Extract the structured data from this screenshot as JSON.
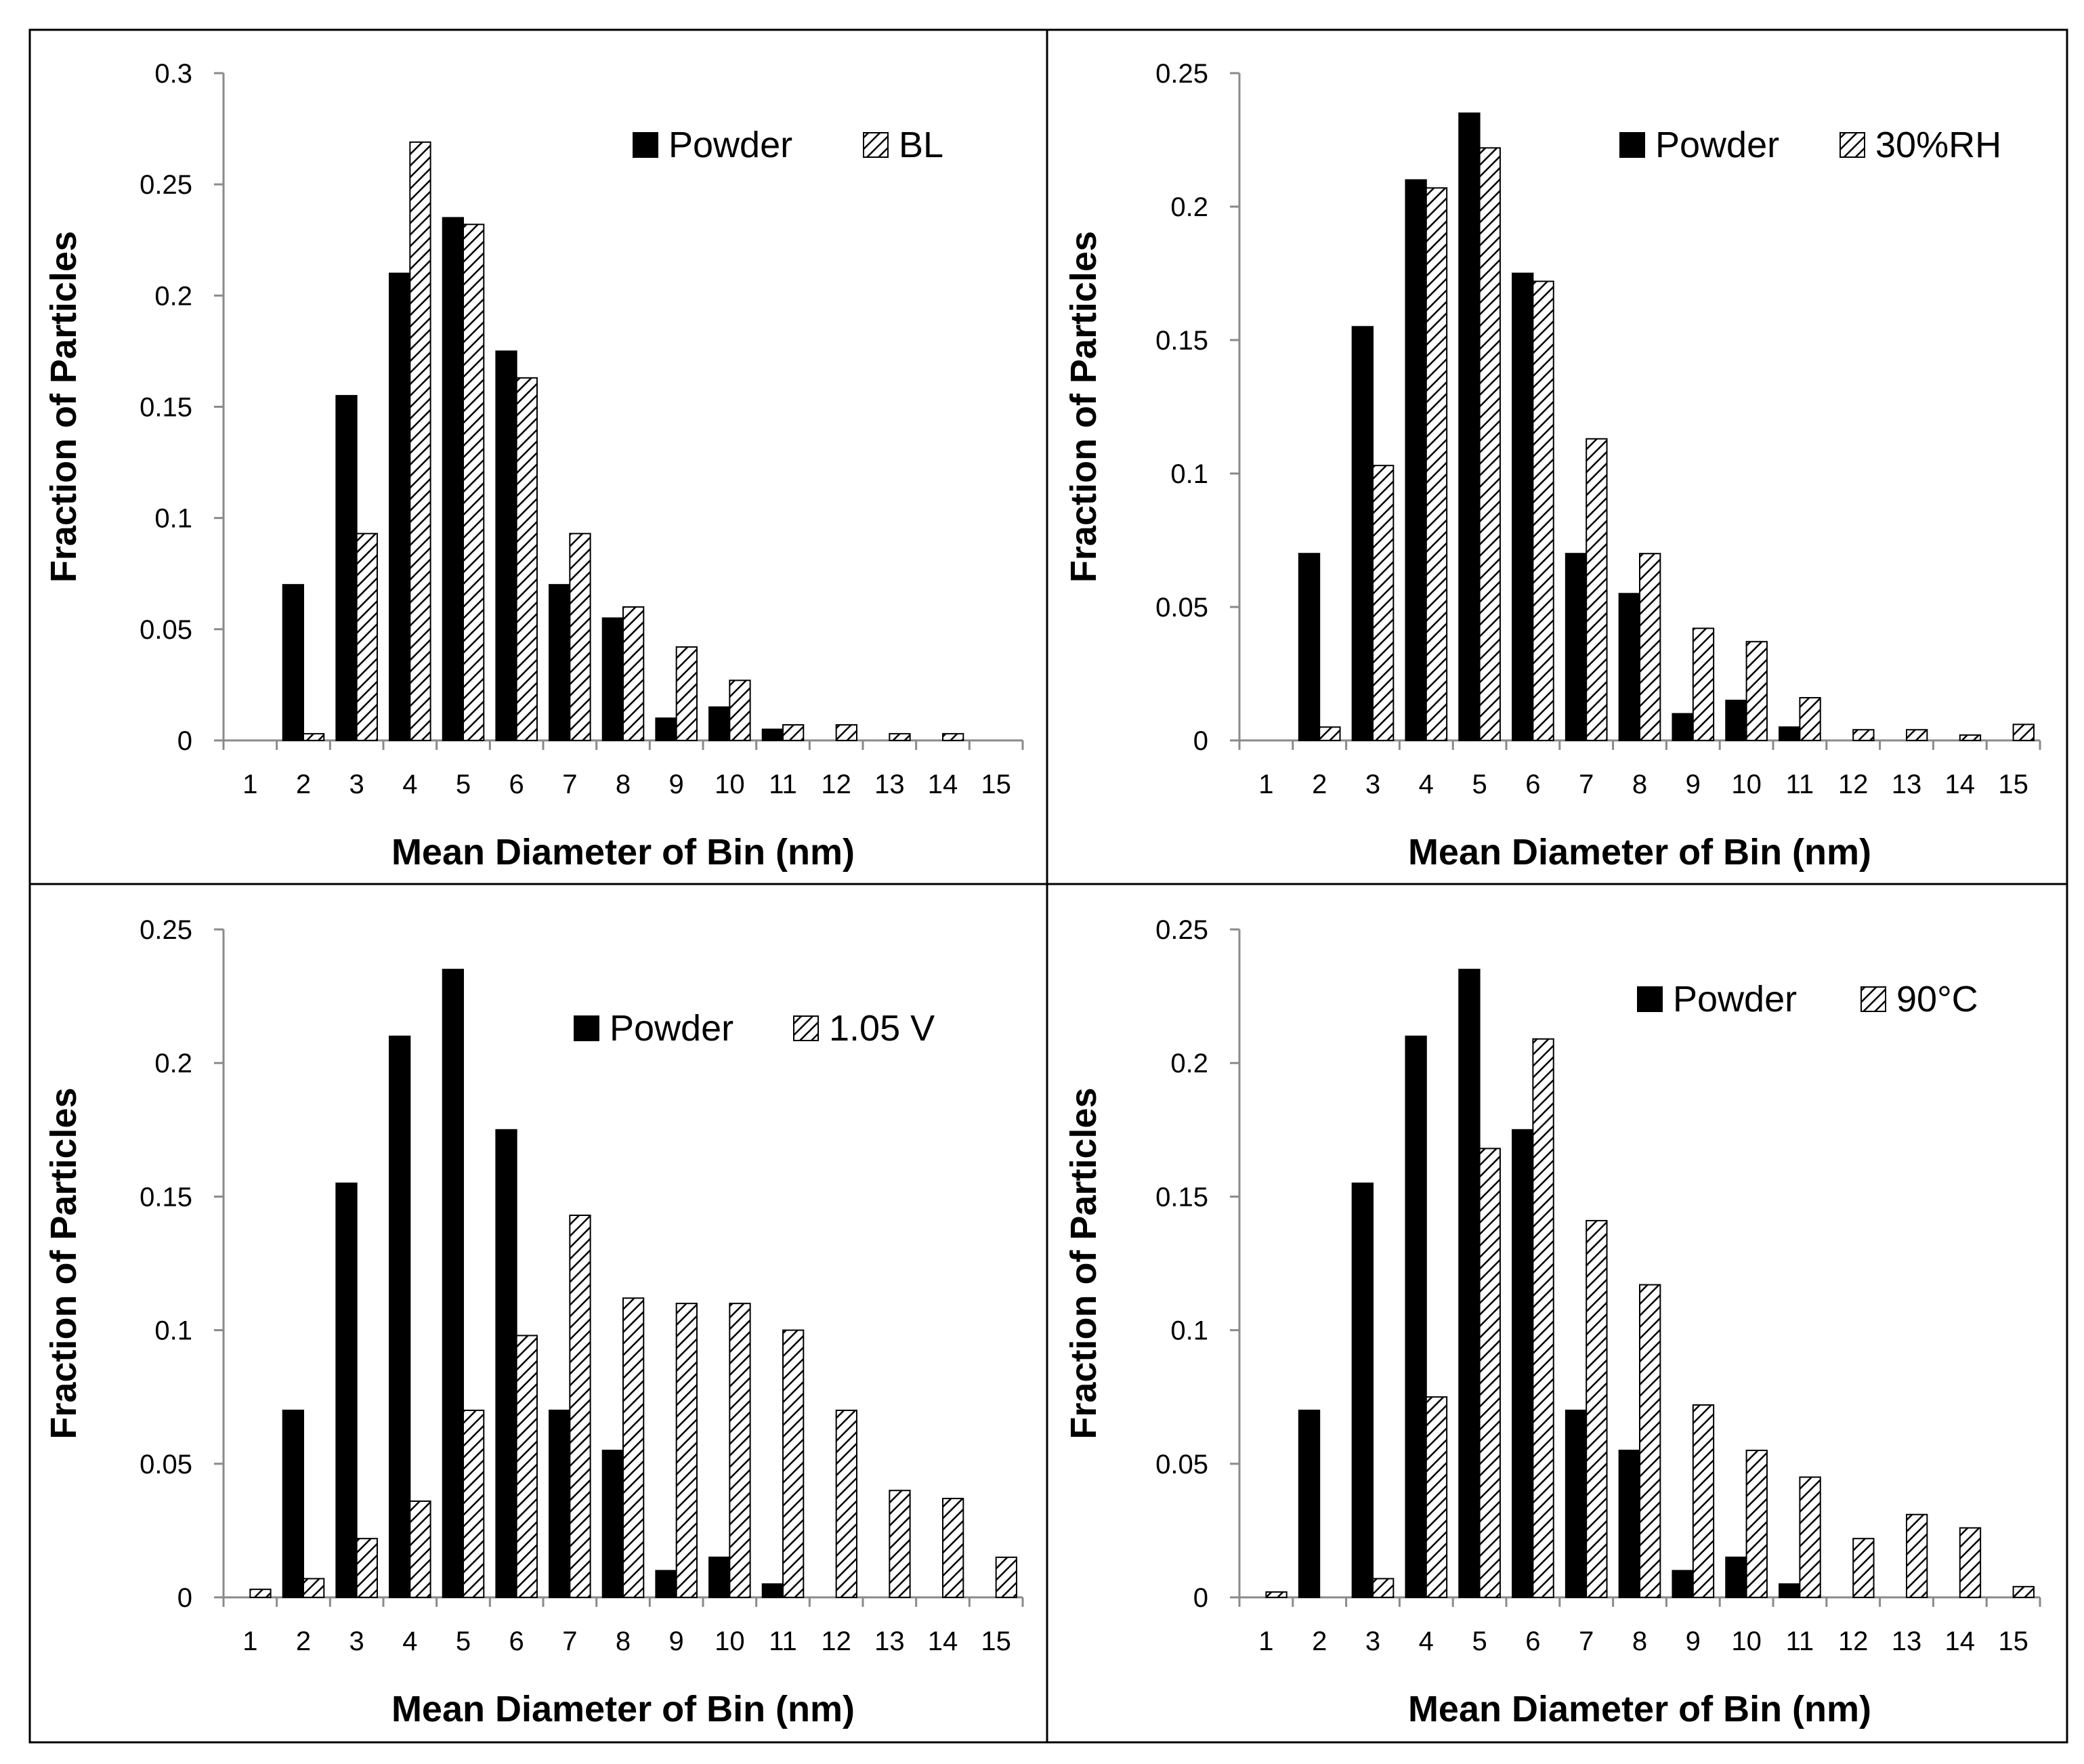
{
  "chart_data": [
    {
      "id": "panel-bl",
      "type": "bar",
      "categories": [
        "1",
        "2",
        "3",
        "4",
        "5",
        "6",
        "7",
        "8",
        "9",
        "10",
        "11",
        "12",
        "13",
        "14",
        "15"
      ],
      "series": [
        {
          "name": "Powder",
          "style": "solid",
          "values": [
            0,
            0.07,
            0.155,
            0.21,
            0.235,
            0.175,
            0.07,
            0.055,
            0.01,
            0.015,
            0.005,
            0,
            0,
            0,
            0
          ]
        },
        {
          "name": "BL",
          "style": "hatched",
          "values": [
            0,
            0.003,
            0.093,
            0.269,
            0.232,
            0.163,
            0.093,
            0.06,
            0.042,
            0.027,
            0.007,
            0.007,
            0.003,
            0.003,
            0
          ]
        }
      ],
      "xlabel": "Mean Diameter of Bin (nm)",
      "ylabel": "Fraction of Particles",
      "ylim": [
        0,
        0.3
      ],
      "yticks": [
        "0",
        "0.05",
        "0.1",
        "0.15",
        "0.2",
        "0.25",
        "0.3"
      ],
      "legend": "top-right"
    },
    {
      "id": "panel-30rh",
      "type": "bar",
      "categories": [
        "1",
        "2",
        "3",
        "4",
        "5",
        "6",
        "7",
        "8",
        "9",
        "10",
        "11",
        "12",
        "13",
        "14",
        "15"
      ],
      "series": [
        {
          "name": "Powder",
          "style": "solid",
          "values": [
            0,
            0.07,
            0.155,
            0.21,
            0.235,
            0.175,
            0.07,
            0.055,
            0.01,
            0.015,
            0.005,
            0,
            0,
            0,
            0
          ]
        },
        {
          "name": "30%RH",
          "style": "hatched",
          "values": [
            0,
            0.005,
            0.103,
            0.207,
            0.222,
            0.172,
            0.113,
            0.07,
            0.042,
            0.037,
            0.016,
            0.004,
            0.004,
            0.002,
            0.006
          ]
        }
      ],
      "xlabel": "Mean Diameter of Bin (nm)",
      "ylabel": "Fraction of Particles",
      "ylim": [
        0,
        0.25
      ],
      "yticks": [
        "0",
        "0.05",
        "0.1",
        "0.15",
        "0.2",
        "0.25"
      ],
      "legend": "top-right"
    },
    {
      "id": "panel-105v",
      "type": "bar",
      "categories": [
        "1",
        "2",
        "3",
        "4",
        "5",
        "6",
        "7",
        "8",
        "9",
        "10",
        "11",
        "12",
        "13",
        "14",
        "15"
      ],
      "series": [
        {
          "name": "Powder",
          "style": "solid",
          "values": [
            0,
            0.07,
            0.155,
            0.21,
            0.235,
            0.175,
            0.07,
            0.055,
            0.01,
            0.015,
            0.005,
            0,
            0,
            0,
            0
          ]
        },
        {
          "name": "1.05 V",
          "style": "hatched",
          "values": [
            0.003,
            0.007,
            0.022,
            0.036,
            0.07,
            0.098,
            0.143,
            0.112,
            0.11,
            0.11,
            0.1,
            0.07,
            0.04,
            0.037,
            0.015
          ]
        }
      ],
      "xlabel": "Mean Diameter of Bin (nm)",
      "ylabel": "Fraction of Particles",
      "ylim": [
        0,
        0.25
      ],
      "yticks": [
        "0",
        "0.05",
        "0.1",
        "0.15",
        "0.2",
        "0.25"
      ],
      "legend": "top-right"
    },
    {
      "id": "panel-90c",
      "type": "bar",
      "categories": [
        "1",
        "2",
        "3",
        "4",
        "5",
        "6",
        "7",
        "8",
        "9",
        "10",
        "11",
        "12",
        "13",
        "14",
        "15"
      ],
      "series": [
        {
          "name": "Powder",
          "style": "solid",
          "values": [
            0,
            0.07,
            0.155,
            0.21,
            0.235,
            0.175,
            0.07,
            0.055,
            0.01,
            0.015,
            0.005,
            0,
            0,
            0,
            0
          ]
        },
        {
          "name": "90°C",
          "style": "hatched",
          "values": [
            0.002,
            0,
            0.007,
            0.075,
            0.168,
            0.209,
            0.141,
            0.117,
            0.072,
            0.055,
            0.045,
            0.022,
            0.031,
            0.026,
            0.004
          ]
        }
      ],
      "xlabel": "Mean Diameter of Bin (nm)",
      "ylabel": "Fraction of Particles",
      "ylim": [
        0,
        0.25
      ],
      "yticks": [
        "0",
        "0.05",
        "0.1",
        "0.15",
        "0.2",
        "0.25"
      ],
      "legend": "top-right"
    }
  ]
}
